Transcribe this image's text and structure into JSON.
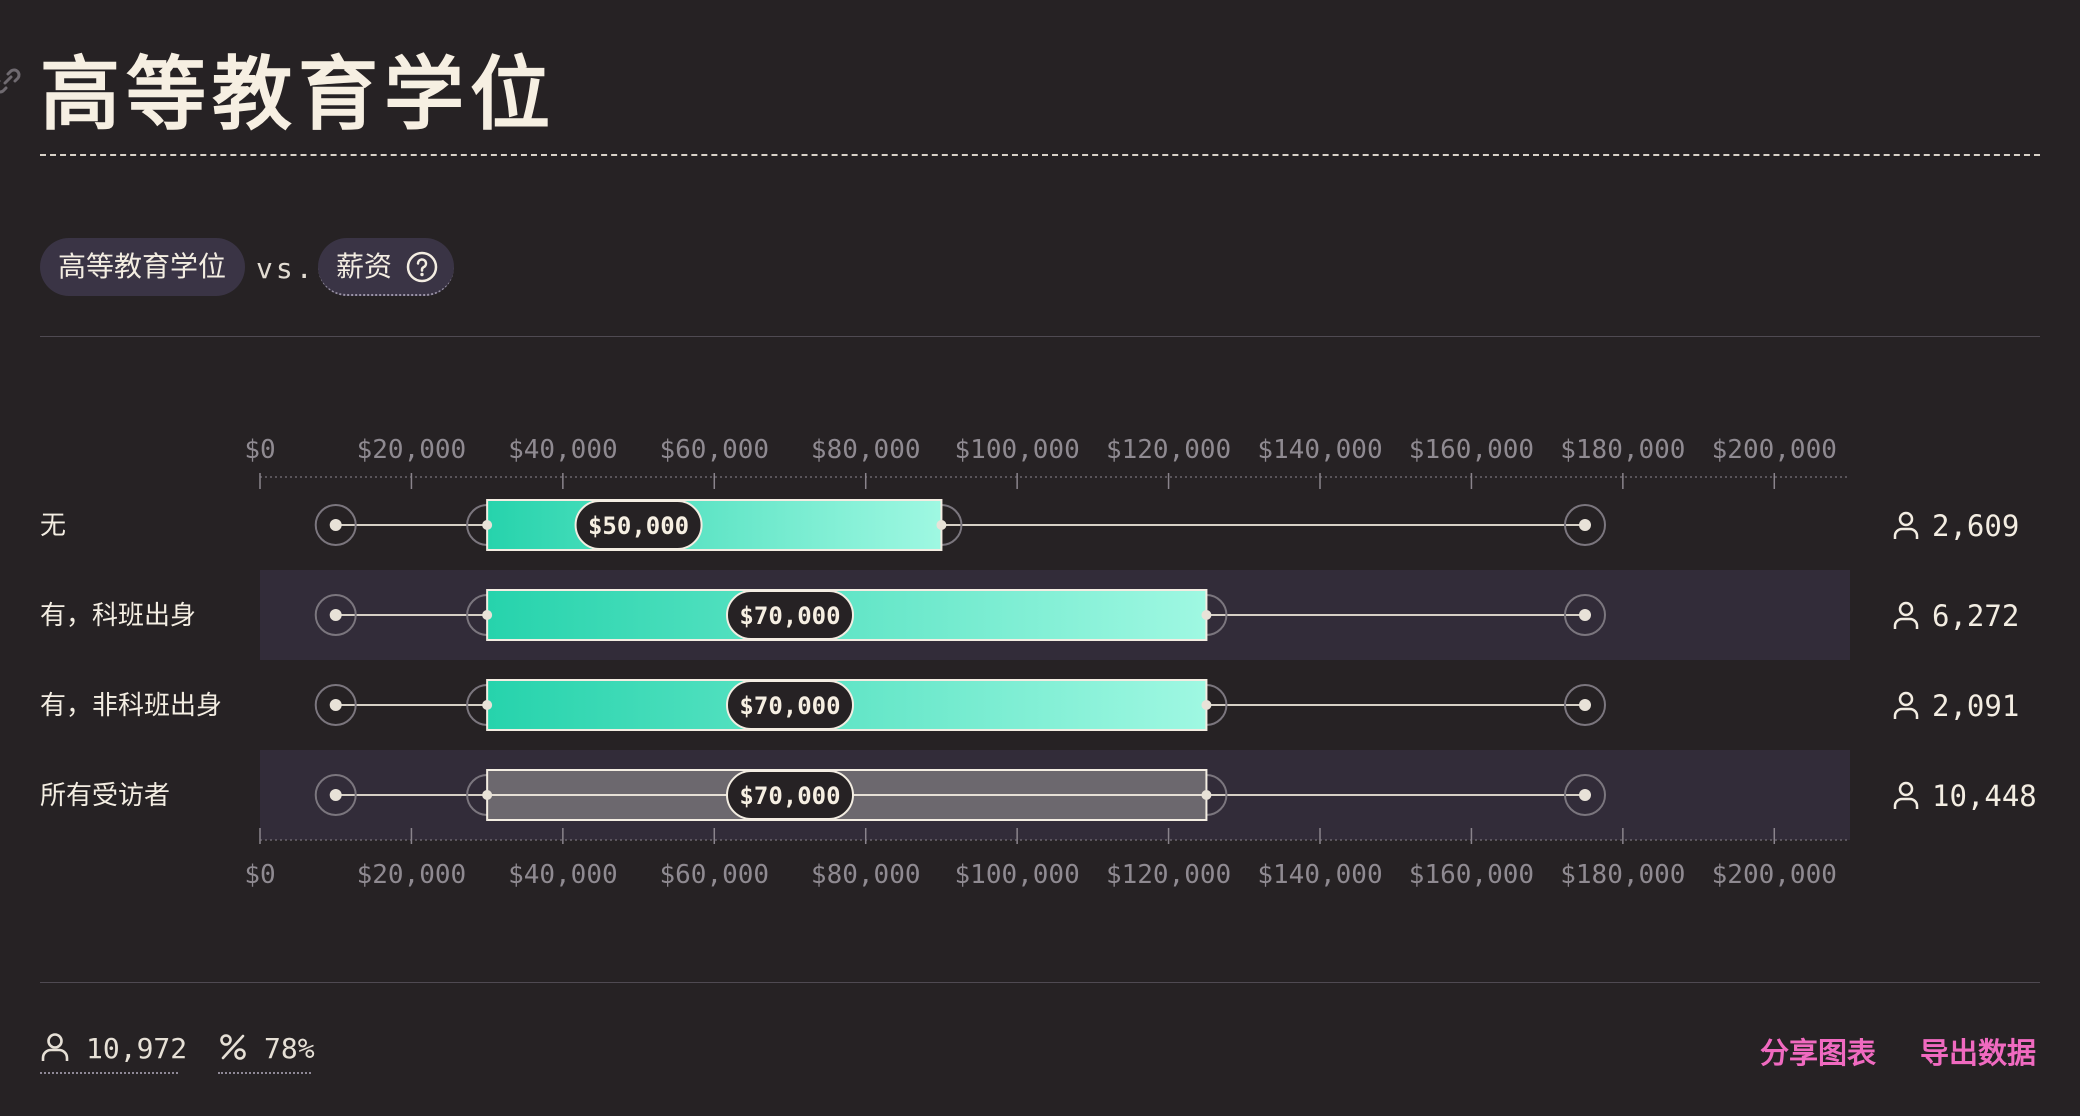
{
  "header": {
    "title": "高等教育学位"
  },
  "filters": {
    "primary_label": "高等教育学位",
    "vs_label": "vs.",
    "secondary_label": "薪资"
  },
  "chart_data": {
    "type": "boxplot",
    "axis": {
      "min": 0,
      "max": 210000,
      "ticks": [
        0,
        20000,
        40000,
        60000,
        80000,
        100000,
        120000,
        140000,
        160000,
        180000,
        200000
      ],
      "tick_labels": [
        "$0",
        "$20,000",
        "$40,000",
        "$60,000",
        "$80,000",
        "$100,000",
        "$120,000",
        "$140,000",
        "$160,000",
        "$180,000",
        "$200,000"
      ]
    },
    "rows": [
      {
        "label": "无",
        "min": 10000,
        "q1": 30000,
        "median": 50000,
        "median_label": "$50,000",
        "q3": 90000,
        "max": 175000,
        "count": "2,609",
        "style": "gradient"
      },
      {
        "label": "有，科班出身",
        "min": 10000,
        "q1": 30000,
        "median": 70000,
        "median_label": "$70,000",
        "q3": 125000,
        "max": 175000,
        "count": "6,272",
        "style": "gradient"
      },
      {
        "label": "有，非科班出身",
        "min": 10000,
        "q1": 30000,
        "median": 70000,
        "median_label": "$70,000",
        "q3": 125000,
        "max": 175000,
        "count": "2,091",
        "style": "gradient"
      },
      {
        "label": "所有受访者",
        "min": 10000,
        "q1": 30000,
        "median": 70000,
        "median_label": "$70,000",
        "q3": 125000,
        "max": 175000,
        "count": "10,448",
        "style": "gray"
      }
    ],
    "colors": {
      "gradient_start": "#26d3ac",
      "gradient_end": "#9ff8e2",
      "gray_box": "#6c686e"
    }
  },
  "footer": {
    "total_respondents": "10,972",
    "response_rate": "78%",
    "share_label": "分享图表",
    "export_label": "导出数据"
  },
  "icons": [
    "link-icon",
    "help-icon",
    "person-icon",
    "percent-icon"
  ]
}
